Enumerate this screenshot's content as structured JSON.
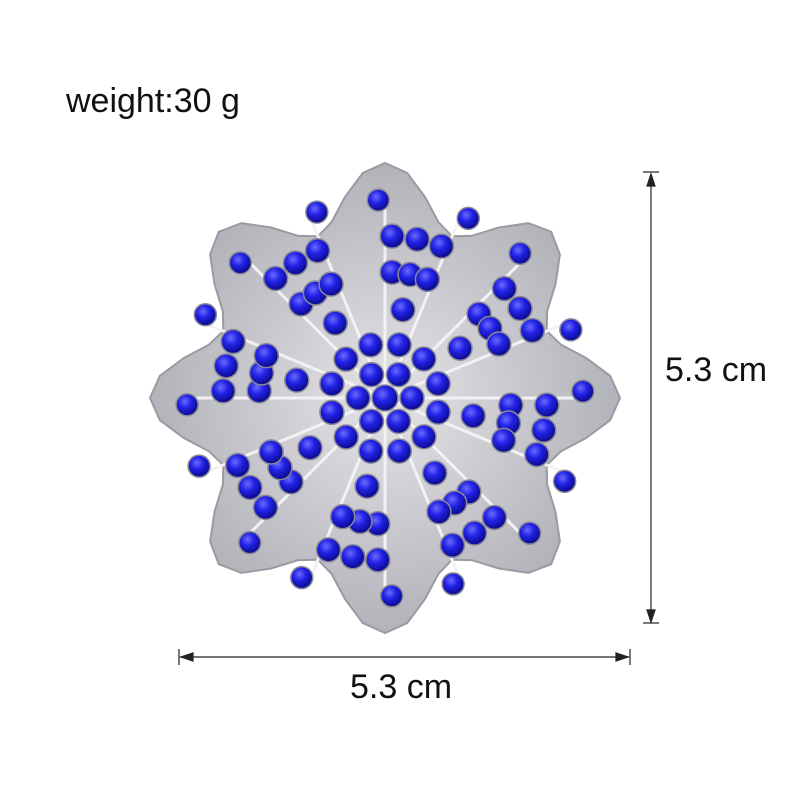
{
  "product": {
    "weight_label": "weight:30 g",
    "height_label": "5.3 cm",
    "width_label": "5.3 cm",
    "gem_color": "#1c1ce0",
    "metal_color": "#c8c8cc"
  }
}
